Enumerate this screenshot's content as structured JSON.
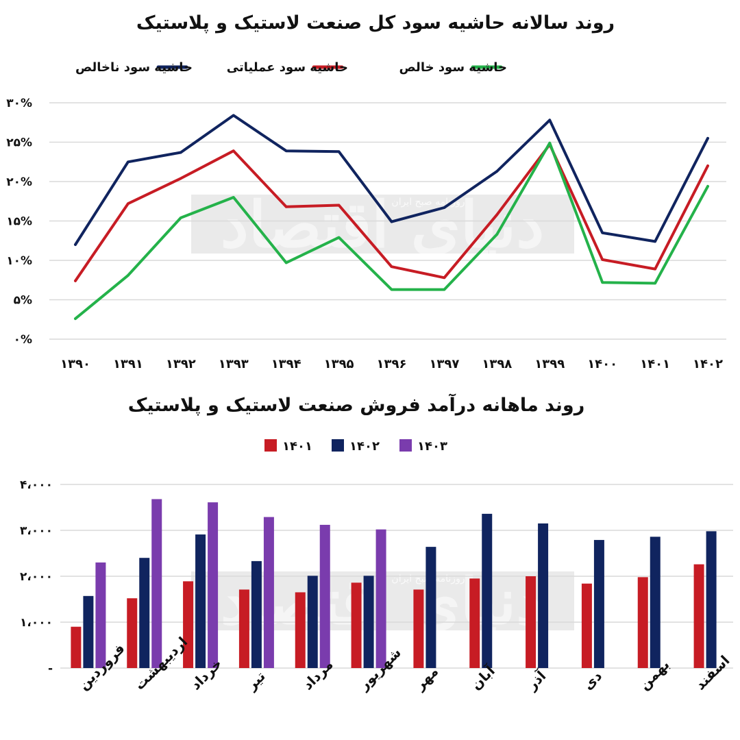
{
  "colors": {
    "navy": "#10245f",
    "red": "#c71c24",
    "green": "#24b24a",
    "purple": "#7a3cad",
    "grid": "#d9d9d9",
    "watermark": "#d9d9d9"
  },
  "watermark": {
    "main_text": "دنیای اقتصاد",
    "sub_text": "روزنامه صبح ایران"
  },
  "chart_data": [
    {
      "type": "line",
      "title": "روند سالانه حاشیه سود کل صنعت لاستیک و پلاستیک",
      "x": [
        "۱۳۹۰",
        "۱۳۹۱",
        "۱۳۹۲",
        "۱۳۹۳",
        "۱۳۹۴",
        "۱۳۹۵",
        "۱۳۹۶",
        "۱۳۹۷",
        "۱۳۹۸",
        "۱۳۹۹",
        "۱۴۰۰",
        "۱۴۰۱",
        "۱۴۰۲"
      ],
      "series": [
        {
          "name": "حاشیه سود ناخالص",
          "color": "#10245f",
          "values": [
            12.0,
            22.5,
            23.7,
            28.4,
            23.9,
            23.8,
            14.9,
            16.7,
            21.3,
            27.8,
            13.5,
            12.4,
            25.5
          ]
        },
        {
          "name": "حاشیه سود عملیاتی",
          "color": "#c71c24",
          "values": [
            7.4,
            17.2,
            20.4,
            23.9,
            16.8,
            17.0,
            9.2,
            7.8,
            15.8,
            24.7,
            10.1,
            8.9,
            22.0
          ]
        },
        {
          "name": "حاشیه سود خالص",
          "color": "#24b24a",
          "values": [
            2.6,
            8.1,
            15.4,
            18.0,
            9.7,
            12.9,
            6.3,
            6.3,
            13.3,
            24.9,
            7.2,
            7.1,
            19.4
          ]
        }
      ],
      "legend": [
        "حاشیه سود ناخالص",
        "حاشیه سود عملیاتی",
        "حاشیه سود خالص"
      ],
      "legend_position": "top",
      "y_tick_labels": [
        "۰%",
        "۵%",
        "۱۰%",
        "۱۵%",
        "۲۰%",
        "۲۵%",
        "۳۰%"
      ],
      "ylim": [
        0,
        30
      ],
      "grid": true
    },
    {
      "type": "bar",
      "title": "روند ماهانه درآمد فروش صنعت لاستیک و پلاستیک",
      "categories": [
        "فروردین",
        "اردیبهشت",
        "خرداد",
        "تیر",
        "مرداد",
        "شهریور",
        "مهر",
        "آبان",
        "آذر",
        "دی",
        "بهمن",
        "اسفند"
      ],
      "series": [
        {
          "name": "۱۴۰۱",
          "color": "#c71c24",
          "values": [
            900,
            1520,
            1890,
            1710,
            1650,
            1860,
            1710,
            1950,
            2000,
            1840,
            1980,
            2260
          ]
        },
        {
          "name": "۱۴۰۲",
          "color": "#10245f",
          "values": [
            1570,
            2400,
            2910,
            2330,
            2010,
            2010,
            2640,
            3360,
            3150,
            2790,
            2860,
            2980
          ]
        },
        {
          "name": "۱۴۰۳",
          "color": "#7a3cad",
          "values": [
            2300,
            3680,
            3610,
            3290,
            3120,
            3020,
            null,
            null,
            null,
            null,
            null,
            null
          ]
        }
      ],
      "legend": [
        "۱۴۰۱",
        "۱۴۰۲",
        "۱۴۰۳"
      ],
      "legend_position": "top",
      "y_tick_labels": [
        "-",
        "۱،۰۰۰",
        "۲،۰۰۰",
        "۳،۰۰۰",
        "۴،۰۰۰"
      ],
      "ylim": [
        0,
        4000
      ],
      "grid": true
    }
  ]
}
